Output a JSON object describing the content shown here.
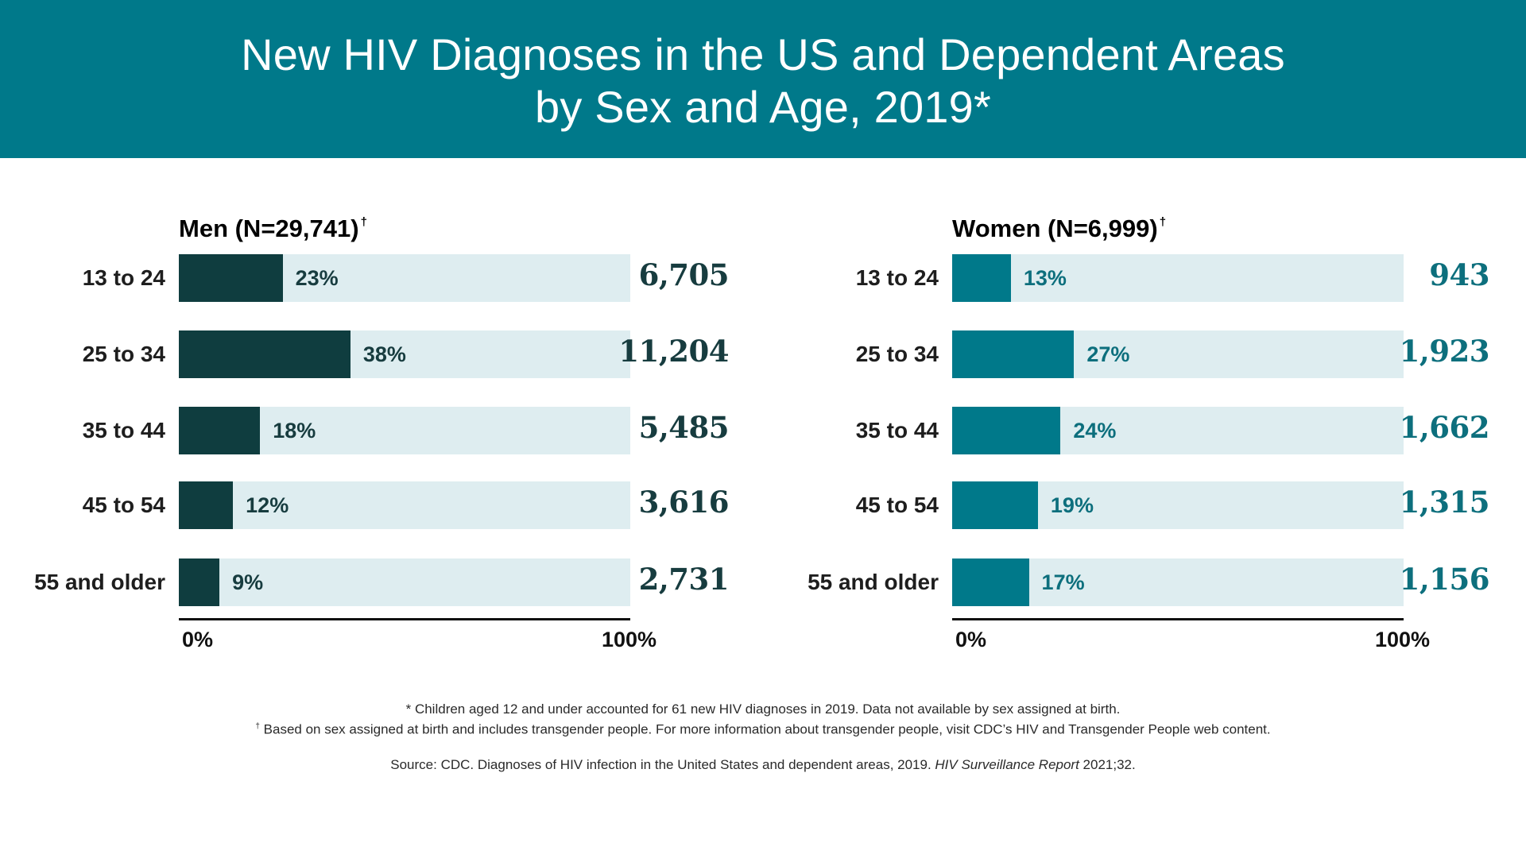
{
  "title_line1": "New HIV Diagnoses in the US and Dependent Areas",
  "title_line2": "by Sex and Age, 2019*",
  "colors": {
    "header_bg": "#00798a",
    "men_bar": "#0f3d3f",
    "women_bar": "#00798a",
    "track": "#deedf0"
  },
  "footnotes": {
    "star": "* Children aged 12 and under accounted for 61 new HIV diagnoses in 2019. Data not available by sex assigned at birth.",
    "dagger_mark": "†",
    "dagger": "Based on sex assigned at birth and includes transgender people. For more information about transgender people, visit CDC’s HIV and Transgender People web content.",
    "source_prefix": "Source: CDC. Diagnoses of HIV infection in the United States and dependent areas, 2019. ",
    "source_italic": "HIV Surveillance Report",
    "source_suffix": " 2021;32."
  },
  "chart_data": [
    {
      "type": "bar",
      "orientation": "horizontal",
      "title": "Men (N=29,741)",
      "title_mark": "†",
      "categories": [
        "13 to 24",
        "25 to 34",
        "35 to 44",
        "45 to 54",
        "55 and older"
      ],
      "values": [
        23,
        38,
        18,
        12,
        9
      ],
      "value_labels": [
        "23%",
        "38%",
        "18%",
        "12%",
        "9%"
      ],
      "counts": [
        "6,705",
        "11,204",
        "5,485",
        "3,616",
        "2,731"
      ],
      "xlim": [
        0,
        100
      ],
      "x_tick_labels": [
        "0%",
        "100%"
      ],
      "color": "#0f3d3f"
    },
    {
      "type": "bar",
      "orientation": "horizontal",
      "title": "Women (N=6,999)",
      "title_mark": "†",
      "categories": [
        "13 to 24",
        "25 to 34",
        "35 to 44",
        "45 to 54",
        "55 and older"
      ],
      "values": [
        13,
        27,
        24,
        19,
        17
      ],
      "value_labels": [
        "13%",
        "27%",
        "24%",
        "19%",
        "17%"
      ],
      "counts": [
        "943",
        "1,923",
        "1,662",
        "1,315",
        "1,156"
      ],
      "xlim": [
        0,
        100
      ],
      "x_tick_labels": [
        "0%",
        "100%"
      ],
      "color": "#00798a"
    }
  ]
}
